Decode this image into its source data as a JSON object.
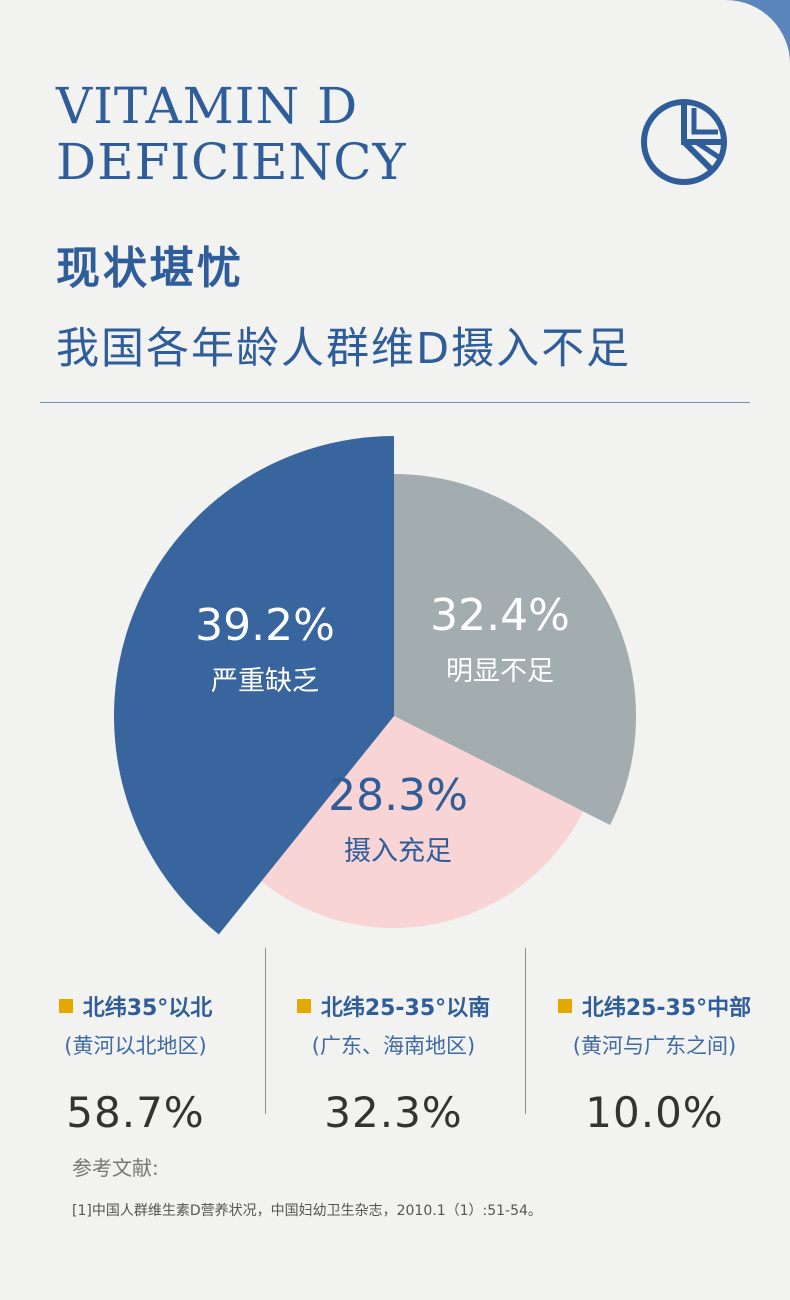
{
  "header": {
    "title_line1": "VITAMIN D",
    "title_line2": "DEFICIENCY",
    "heading": "现状堪忧",
    "subheading": "我国各年龄人群维D摄入不足",
    "icon": "pie-chart-icon"
  },
  "chart_data": {
    "type": "pie",
    "slices": [
      {
        "label": "严重缺乏",
        "value": 39.2,
        "value_label": "39.2%",
        "color": "#38659e"
      },
      {
        "label": "明显不足",
        "value": 32.4,
        "value_label": "32.4%",
        "color": "#a3acaf"
      },
      {
        "label": "摄入充足",
        "value": 28.3,
        "value_label": "28.3%",
        "color": "#f8d4d4"
      }
    ]
  },
  "stats": [
    {
      "name": "北纬35°以北",
      "region": "(黄河以北地区)",
      "value": "58.7%"
    },
    {
      "name": "北纬25-35°以南",
      "region": "(广东、海南地区)",
      "value": "32.3%"
    },
    {
      "name": "北纬25-35°中部",
      "region": "(黄河与广东之间)",
      "value": "10.0%"
    }
  ],
  "colors": {
    "accent": "#2f5d9a",
    "bullet": "#e2a900",
    "background": "#f2f2f0"
  },
  "reference": {
    "title": "参考文献:",
    "text": "[1]中国人群维生素D营养状况，中国妇幼卫生杂志，2010.1（1）:51-54。"
  }
}
